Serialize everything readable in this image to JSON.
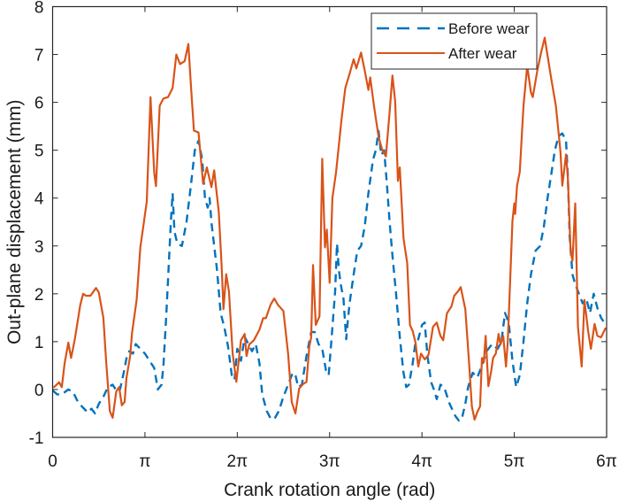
{
  "chart_data": {
    "type": "line",
    "title": "",
    "xlabel": "Crank rotation angle (rad)",
    "ylabel": "Out-plane displacement (mm)",
    "x_unit": "pi",
    "xlim": [
      0,
      6
    ],
    "ylim": [
      -1,
      8
    ],
    "xticks": [
      0,
      1,
      2,
      3,
      4,
      5,
      6
    ],
    "xtick_labels": [
      "0",
      "π",
      "2π",
      "3π",
      "4π",
      "5π",
      "6π"
    ],
    "yticks": [
      -1,
      0,
      1,
      2,
      3,
      4,
      5,
      6,
      7,
      8
    ],
    "ytick_labels": [
      "-1",
      "0",
      "1",
      "2",
      "3",
      "4",
      "5",
      "6",
      "7",
      "8"
    ],
    "grid": false,
    "legend": {
      "placement": "top-right",
      "entries": [
        "Before wear",
        "After wear"
      ]
    },
    "series": [
      {
        "name": "Before wear",
        "style": "dashed",
        "color": "#0072BD",
        "x": [
          0,
          0.05,
          0.1,
          0.17,
          0.22,
          0.28,
          0.33,
          0.38,
          0.42,
          0.46,
          0.5,
          0.55,
          0.6,
          0.65,
          0.7,
          0.73,
          0.77,
          0.8,
          0.83,
          0.87,
          0.9,
          0.95,
          1.0,
          1.05,
          1.1,
          1.14,
          1.18,
          1.2,
          1.23,
          1.26,
          1.28,
          1.3,
          1.32,
          1.35,
          1.4,
          1.45,
          1.5,
          1.54,
          1.58,
          1.62,
          1.65,
          1.68,
          1.7,
          1.72,
          1.75,
          1.78,
          1.82,
          1.86,
          1.9,
          1.94,
          1.97,
          2.0,
          2.04,
          2.08,
          2.12,
          2.16,
          2.2,
          2.24,
          2.27,
          2.32,
          2.36,
          2.4,
          2.45,
          2.5,
          2.55,
          2.6,
          2.63,
          2.66,
          2.7,
          2.75,
          2.8,
          2.84,
          2.88,
          2.92,
          2.96,
          2.99,
          3.03,
          3.06,
          3.08,
          3.1,
          3.12,
          3.15,
          3.18,
          3.2,
          3.22,
          3.26,
          3.3,
          3.34,
          3.38,
          3.42,
          3.47,
          3.5,
          3.53,
          3.56,
          3.59,
          3.62,
          3.65,
          3.68,
          3.72,
          3.76,
          3.8,
          3.83,
          3.86,
          3.9,
          3.93,
          3.96,
          4.0,
          4.03,
          4.06,
          4.1,
          4.13,
          4.16,
          4.2,
          4.24,
          4.3,
          4.36,
          4.4,
          4.43,
          4.47,
          4.5,
          4.55,
          4.6,
          4.65,
          4.7,
          4.76,
          4.82,
          4.86,
          4.9,
          4.94,
          4.98,
          5.02,
          5.06,
          5.1,
          5.14,
          5.18,
          5.23,
          5.28,
          5.32,
          5.36,
          5.4,
          5.44,
          5.48,
          5.52,
          5.56,
          5.58,
          5.6,
          5.63,
          5.66,
          5.7,
          5.74,
          5.78,
          5.82,
          5.86,
          5.9,
          5.94,
          5.99
        ],
        "y": [
          -0.02,
          -0.1,
          -0.1,
          0.0,
          -0.05,
          -0.28,
          -0.38,
          -0.48,
          -0.4,
          -0.5,
          -0.3,
          -0.15,
          0.05,
          0.1,
          -0.05,
          0.0,
          0.35,
          0.65,
          0.8,
          0.75,
          0.95,
          0.85,
          0.75,
          0.6,
          0.45,
          0.0,
          0.1,
          0.5,
          1.5,
          2.7,
          3.5,
          4.1,
          3.3,
          3.05,
          3.0,
          3.5,
          4.3,
          5.0,
          5.2,
          4.8,
          4.0,
          3.8,
          4.0,
          3.5,
          3.0,
          2.5,
          1.6,
          1.3,
          0.9,
          0.3,
          0.2,
          0.85,
          0.6,
          1.1,
          0.95,
          0.8,
          0.95,
          0.55,
          -0.1,
          -0.45,
          -0.6,
          -0.62,
          -0.45,
          -0.15,
          0.1,
          0.35,
          0.3,
          0.05,
          0.1,
          0.7,
          1.2,
          1.2,
          0.95,
          0.85,
          0.4,
          0.3,
          1.3,
          2.05,
          3.05,
          2.5,
          2.2,
          1.9,
          1.05,
          1.5,
          1.85,
          2.4,
          2.9,
          3.0,
          3.4,
          4.1,
          4.8,
          5.0,
          5.4,
          4.9,
          5.0,
          4.3,
          3.5,
          2.8,
          2.0,
          1.1,
          0.35,
          0.05,
          0.1,
          0.55,
          1.0,
          1.05,
          1.35,
          1.4,
          0.7,
          0.15,
          0.0,
          -0.2,
          0.1,
          0.05,
          -0.3,
          -0.55,
          -0.65,
          -0.62,
          -0.3,
          0.05,
          0.35,
          0.25,
          0.5,
          0.8,
          0.95,
          0.85,
          1.0,
          1.6,
          1.4,
          0.6,
          0.05,
          0.3,
          1.0,
          1.8,
          2.4,
          2.9,
          3.0,
          3.4,
          4.0,
          4.5,
          5.0,
          5.3,
          5.35,
          5.2,
          4.5,
          3.2,
          2.4,
          2.2,
          2.0,
          1.8,
          1.9,
          1.6,
          2.0,
          1.7,
          1.5,
          1.35
        ]
      },
      {
        "name": "After wear",
        "style": "solid",
        "color": "#D95319",
        "x": [
          0.01,
          0.07,
          0.1,
          0.13,
          0.17,
          0.2,
          0.24,
          0.3,
          0.33,
          0.36,
          0.41,
          0.47,
          0.5,
          0.55,
          0.58,
          0.62,
          0.65,
          0.69,
          0.72,
          0.75,
          0.78,
          0.8,
          0.84,
          0.86,
          0.91,
          0.95,
          0.99,
          1.02,
          1.06,
          1.1,
          1.12,
          1.16,
          1.2,
          1.25,
          1.3,
          1.34,
          1.38,
          1.43,
          1.47,
          1.5,
          1.53,
          1.58,
          1.63,
          1.67,
          1.72,
          1.75,
          1.8,
          1.83,
          1.85,
          1.88,
          1.91,
          1.95,
          1.99,
          2.04,
          2.08,
          2.1,
          2.13,
          2.18,
          2.24,
          2.28,
          2.31,
          2.36,
          2.4,
          2.44,
          2.5,
          2.55,
          2.59,
          2.63,
          2.67,
          2.71,
          2.75,
          2.78,
          2.8,
          2.82,
          2.85,
          2.89,
          2.92,
          2.95,
          2.97,
          3.0,
          3.03,
          3.07,
          3.13,
          3.17,
          3.22,
          3.26,
          3.29,
          3.34,
          3.38,
          3.42,
          3.44,
          3.48,
          3.53,
          3.57,
          3.61,
          3.65,
          3.68,
          3.71,
          3.74,
          3.76,
          3.8,
          3.84,
          3.87,
          3.9,
          3.93,
          3.96,
          3.99,
          4.03,
          4.07,
          4.12,
          4.16,
          4.2,
          4.23,
          4.27,
          4.32,
          4.35,
          4.39,
          4.42,
          4.47,
          4.51,
          4.54,
          4.57,
          4.6,
          4.63,
          4.65,
          4.67,
          4.69,
          4.72,
          4.75,
          4.77,
          4.8,
          4.83,
          4.85,
          4.88,
          4.91,
          4.93,
          4.96,
          4.98,
          5.0,
          5.01,
          5.03,
          5.06,
          5.1,
          5.14,
          5.18,
          5.2,
          5.25,
          5.29,
          5.33,
          5.37,
          5.4,
          5.45,
          5.5,
          5.52,
          5.56,
          5.58,
          5.61,
          5.63,
          5.66,
          5.69,
          5.73,
          5.76,
          5.8,
          5.83,
          5.87,
          5.9,
          5.94,
          5.99
        ],
        "y": [
          0.04,
          0.15,
          0.05,
          0.55,
          0.98,
          0.66,
          1.05,
          1.77,
          2.0,
          1.96,
          1.96,
          2.12,
          2.03,
          1.5,
          0.57,
          -0.45,
          -0.59,
          -0.04,
          0.05,
          -0.33,
          -0.26,
          0.24,
          0.7,
          1.18,
          1.87,
          2.97,
          3.52,
          3.93,
          6.11,
          4.53,
          4.25,
          5.93,
          6.08,
          6.11,
          6.3,
          7.0,
          6.8,
          6.86,
          7.22,
          6.3,
          5.41,
          5.37,
          4.3,
          4.64,
          4.23,
          4.58,
          3.71,
          2.6,
          1.68,
          2.41,
          2.05,
          0.75,
          0.16,
          1.03,
          1.16,
          0.7,
          0.94,
          1.03,
          1.25,
          1.49,
          1.49,
          1.77,
          1.9,
          1.77,
          1.64,
          0.75,
          -0.26,
          -0.5,
          0.02,
          0.11,
          0.16,
          0.9,
          1.09,
          2.6,
          1.35,
          1.53,
          4.82,
          2.97,
          3.34,
          2.23,
          4.0,
          4.55,
          5.66,
          6.3,
          6.62,
          6.9,
          6.71,
          7.04,
          6.67,
          6.26,
          6.52,
          5.93,
          5.28,
          5.0,
          4.87,
          5.8,
          6.56,
          6.02,
          4.36,
          4.64,
          3.16,
          2.64,
          1.35,
          1.22,
          0.98,
          0.48,
          0.75,
          0.63,
          0.72,
          1.31,
          1.4,
          1.12,
          1.03,
          1.59,
          1.74,
          1.96,
          2.05,
          2.14,
          1.68,
          0.57,
          -0.35,
          -0.63,
          -0.47,
          -0.35,
          0.66,
          0.57,
          1.12,
          0.07,
          0.39,
          0.66,
          0.75,
          1.16,
          0.94,
          1.12,
          0.48,
          1.03,
          2.51,
          3.52,
          3.89,
          3.67,
          4.26,
          4.55,
          5.93,
          6.76,
          6.21,
          6.11,
          6.67,
          7.04,
          7.35,
          6.86,
          6.49,
          5.93,
          4.97,
          4.26,
          4.91,
          4.45,
          2.88,
          2.69,
          3.89,
          1.31,
          0.48,
          1.87,
          1.22,
          0.85,
          1.37,
          1.12,
          1.09,
          1.29
        ]
      }
    ]
  }
}
